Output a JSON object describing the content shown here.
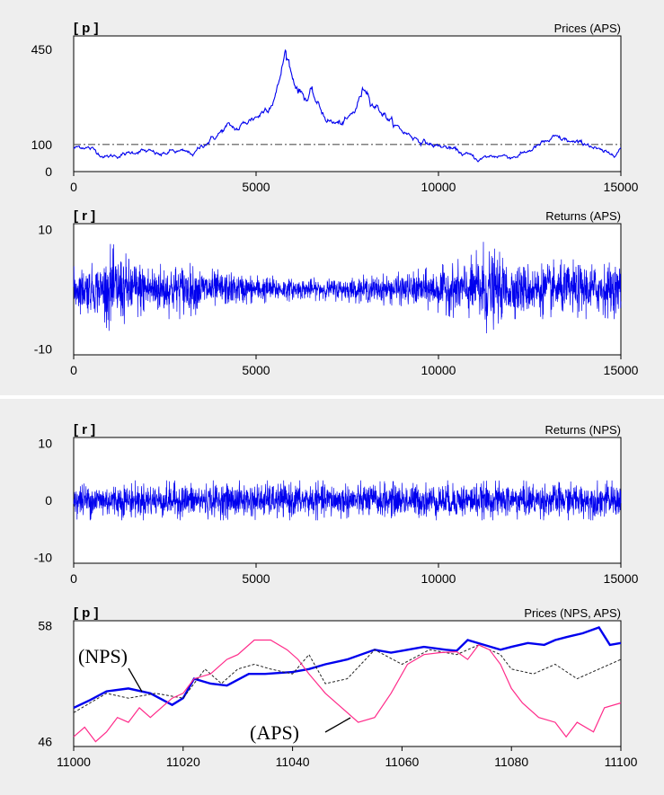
{
  "colors": {
    "nps": "#0000ee",
    "aps": "#ff2b8a",
    "aps_dashed": "#222222",
    "hline": "#555555",
    "frame": "#000000",
    "plot_bg": "#ffffff",
    "page_bg": "#eeeeee"
  },
  "chart_data": [
    {
      "type": "line",
      "title": "Prices (APS)",
      "unit_label": "[ p ]",
      "xlim": [
        0,
        15000
      ],
      "ylim": [
        0,
        500
      ],
      "yticks": [
        "450",
        "100",
        "0"
      ],
      "ytick_values": [
        450,
        100,
        0
      ],
      "xticks": [
        "0",
        "5000",
        "10000",
        "15000"
      ],
      "xtick_values": [
        0,
        5000,
        10000,
        15000
      ],
      "hline": 100,
      "series": [
        {
          "x": [
            0,
            300,
            600,
            900,
            1200,
            1500,
            1800,
            2100,
            2400,
            2700,
            3000,
            3300,
            3600,
            3900,
            4200,
            4500,
            4800,
            5100,
            5400,
            5600,
            5800,
            5900,
            6000,
            6200,
            6400,
            6500,
            6700,
            6900,
            7100,
            7300,
            7500,
            7700,
            7900,
            8000,
            8200,
            8400,
            8600,
            8800,
            9000,
            9300,
            9600,
            9900,
            10200,
            10500,
            10800,
            11100,
            11400,
            11700,
            12000,
            12300,
            12600,
            12900,
            13200,
            13500,
            13800,
            14100,
            14400,
            14700,
            15000
          ],
          "y": [
            85,
            95,
            75,
            55,
            60,
            65,
            80,
            70,
            60,
            75,
            70,
            65,
            105,
            130,
            165,
            155,
            190,
            210,
            255,
            310,
            440,
            405,
            345,
            300,
            270,
            290,
            240,
            200,
            180,
            175,
            185,
            220,
            290,
            310,
            260,
            230,
            200,
            170,
            150,
            130,
            110,
            95,
            90,
            75,
            60,
            45,
            55,
            60,
            55,
            65,
            85,
            105,
            120,
            115,
            100,
            105,
            75,
            60,
            90
          ]
        }
      ]
    },
    {
      "type": "line",
      "title": "Returns (APS)",
      "unit_label": "[ r ]",
      "xlim": [
        0,
        15000
      ],
      "ylim": [
        -11,
        11
      ],
      "yticks": [
        "10",
        "-10"
      ],
      "ytick_values": [
        10,
        -10
      ],
      "xticks": [
        "0",
        "5000",
        "10000",
        "15000"
      ],
      "xtick_values": [
        0,
        5000,
        10000,
        15000
      ],
      "series": [
        {
          "x": [
            0,
            800,
            1000,
            1200,
            2000,
            2500,
            3000,
            3500,
            4500,
            5500,
            6000,
            6500,
            7000,
            8000,
            9000,
            10000,
            10500,
            11000,
            11200,
            11500,
            12000,
            13000,
            14000,
            15000
          ],
          "y_envelope": [
            4,
            5,
            8,
            7,
            5,
            5,
            5,
            4,
            3,
            2.5,
            2,
            2,
            2,
            2.5,
            3,
            4,
            5,
            6,
            9,
            7,
            5,
            5,
            5,
            5
          ]
        }
      ]
    },
    {
      "type": "line",
      "title": "Returns (NPS)",
      "unit_label": "[ r ]",
      "xlim": [
        0,
        15000
      ],
      "ylim": [
        -11,
        11
      ],
      "yticks": [
        "10",
        "0",
        "-10"
      ],
      "ytick_values": [
        10,
        0,
        -10
      ],
      "xticks": [
        "0",
        "5000",
        "10000",
        "15000"
      ],
      "xtick_values": [
        0,
        5000,
        10000,
        15000
      ],
      "series": [
        {
          "x": [
            0,
            15000
          ],
          "y_envelope": [
            3.5,
            3.5
          ]
        }
      ]
    },
    {
      "type": "line",
      "title": "Prices (NPS, APS)",
      "unit_label": "[ p ]",
      "xlim": [
        11000,
        11100
      ],
      "ylim": [
        45.5,
        58.5
      ],
      "yticks": [
        "58",
        "46"
      ],
      "ytick_values": [
        58,
        46
      ],
      "xticks": [
        "11000",
        "11020",
        "11040",
        "11060",
        "11080",
        "11100"
      ],
      "xtick_values": [
        11000,
        11020,
        11040,
        11060,
        11080,
        11100
      ],
      "annotations": [
        "(NPS)",
        "(APS)"
      ],
      "series": [
        {
          "name": "NPS",
          "x": [
            11000,
            11003,
            11006,
            11010,
            11014,
            11018,
            11020,
            11022,
            11025,
            11028,
            11032,
            11035,
            11040,
            11043,
            11046,
            11050,
            11055,
            11058,
            11060,
            11064,
            11068,
            11070,
            11072,
            11075,
            11078,
            11080,
            11083,
            11086,
            11088,
            11090,
            11093,
            11096,
            11098,
            11100
          ],
          "y": [
            49.5,
            50.3,
            51.2,
            51.5,
            51.0,
            49.8,
            50.5,
            52.5,
            52.0,
            51.8,
            53.0,
            53.0,
            53.2,
            53.5,
            54.0,
            54.5,
            55.5,
            55.2,
            55.4,
            55.8,
            55.5,
            55.4,
            56.5,
            56.0,
            55.5,
            55.8,
            56.2,
            56.0,
            56.5,
            56.8,
            57.2,
            57.8,
            56.0,
            56.2
          ]
        },
        {
          "name": "APS-dashed",
          "x": [
            11000,
            11003,
            11006,
            11010,
            11015,
            11020,
            11024,
            11027,
            11030,
            11033,
            11036,
            11040,
            11043,
            11046,
            11050,
            11055,
            11060,
            11065,
            11070,
            11074,
            11078,
            11080,
            11084,
            11088,
            11092,
            11096,
            11100
          ],
          "y": [
            49.0,
            50.0,
            51.0,
            50.5,
            51.0,
            50.5,
            53.5,
            52.0,
            53.5,
            54.0,
            53.5,
            53.0,
            55.0,
            52.0,
            52.5,
            55.5,
            54.0,
            55.5,
            55.0,
            56.0,
            55.0,
            53.5,
            53.0,
            54.0,
            52.5,
            53.5,
            54.5
          ]
        },
        {
          "name": "APS",
          "x": [
            11000,
            11002,
            11004,
            11006,
            11008,
            11010,
            11012,
            11014,
            11016,
            11018,
            11020,
            11022,
            11025,
            11028,
            11030,
            11033,
            11036,
            11039,
            11041,
            11043,
            11046,
            11049,
            11052,
            11055,
            11058,
            11061,
            11064,
            11067,
            11070,
            11072,
            11074,
            11076,
            11078,
            11080,
            11082,
            11085,
            11088,
            11090,
            11092,
            11095,
            11097,
            11100
          ],
          "y": [
            46.5,
            47.5,
            46.0,
            47.0,
            48.5,
            48.0,
            49.5,
            48.5,
            49.5,
            50.5,
            51.0,
            52.5,
            53.0,
            54.5,
            55.0,
            56.5,
            56.5,
            55.5,
            54.5,
            53.0,
            51.0,
            49.5,
            48.0,
            48.5,
            51.0,
            54.0,
            55.0,
            55.2,
            55.3,
            54.5,
            56.0,
            55.5,
            54.0,
            51.5,
            50.0,
            48.5,
            48.0,
            46.5,
            48.0,
            47.0,
            49.5,
            50.0
          ]
        }
      ]
    }
  ]
}
